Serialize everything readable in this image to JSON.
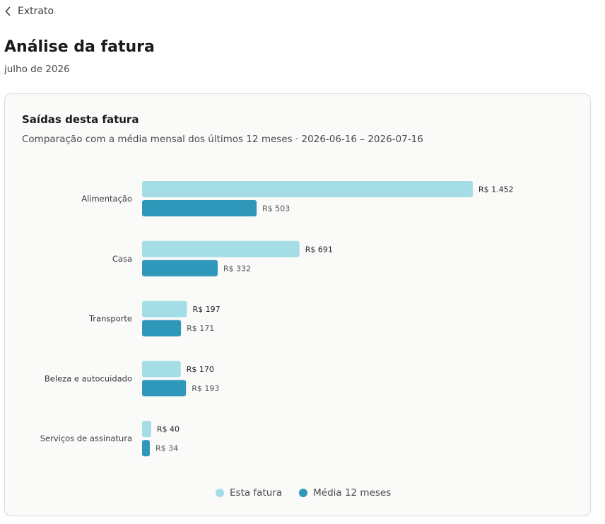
{
  "header": {
    "back_label": "Extrato",
    "title": "Análise da fatura",
    "subtitle": "julho de 2026"
  },
  "card": {
    "title": "Saídas desta fatura",
    "subtitle": "Comparação com a média mensal dos últimos 12 meses · 2026-06-16 – 2026-07-16"
  },
  "colors": {
    "current": "#a4dde6",
    "average": "#2f97b9"
  },
  "chart_data": {
    "type": "bar",
    "orientation": "horizontal",
    "categories": [
      "Alimentação",
      "Casa",
      "Transporte",
      "Beleza e autocuidado",
      "Serviços de assinatura"
    ],
    "series": [
      {
        "name": "Esta fatura",
        "values": [
          1452,
          691,
          197,
          170,
          40
        ],
        "labels": [
          "R$ 1.452",
          "R$ 691",
          "R$ 197",
          "R$ 170",
          "R$ 40"
        ]
      },
      {
        "name": "Média 12 meses",
        "values": [
          503,
          332,
          171,
          193,
          34
        ],
        "labels": [
          "R$ 503",
          "R$ 332",
          "R$ 171",
          "R$ 193",
          "R$ 34"
        ]
      }
    ],
    "xlim": [
      0,
      1452
    ],
    "grid": false,
    "legend_position": "bottom"
  }
}
